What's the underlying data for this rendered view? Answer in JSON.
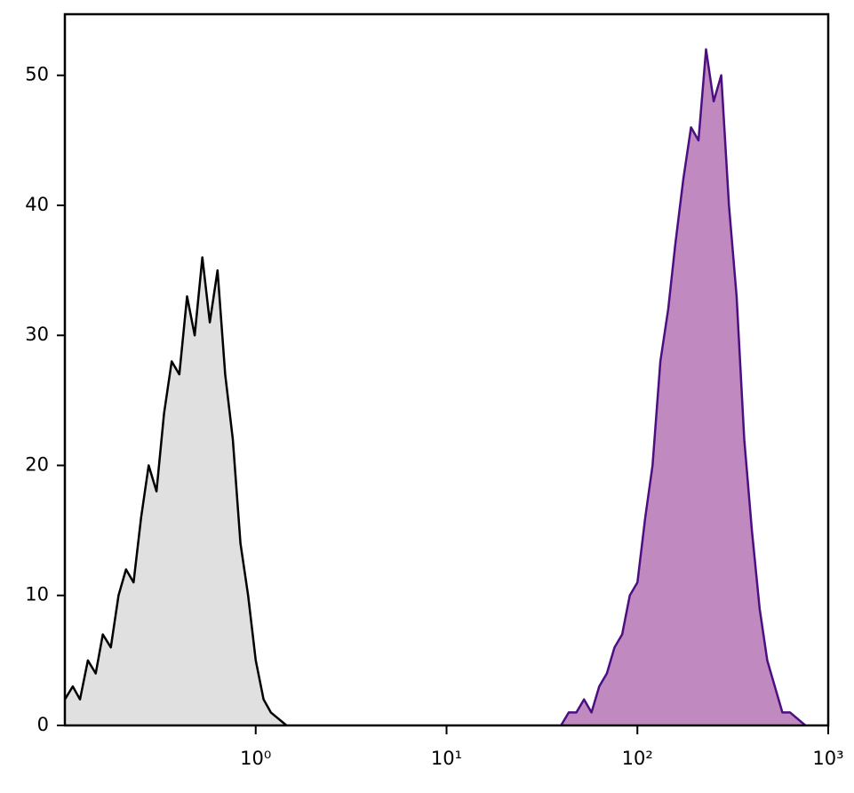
{
  "chart_data": {
    "type": "histogram-overlay",
    "xscale": "log",
    "xlim": [
      0.1,
      1000
    ],
    "ylim": [
      0,
      54.7
    ],
    "xticks": [
      {
        "value": 1,
        "label": "10⁰"
      },
      {
        "value": 10,
        "label": "10¹"
      },
      {
        "value": 100,
        "label": "10²"
      },
      {
        "value": 1000,
        "label": "10³"
      }
    ],
    "yticks": [
      0,
      10,
      20,
      30,
      40,
      50
    ],
    "series": [
      {
        "color": "#000000",
        "fill": "#e0e0e0",
        "x": [
          0.1,
          0.11,
          0.12,
          0.132,
          0.145,
          0.158,
          0.174,
          0.191,
          0.209,
          0.229,
          0.251,
          0.275,
          0.302,
          0.331,
          0.363,
          0.398,
          0.437,
          0.479,
          0.525,
          0.575,
          0.631,
          0.692,
          0.759,
          0.832,
          0.912,
          1.0,
          1.1,
          1.2,
          1.32,
          1.45
        ],
        "values": [
          2,
          3,
          2,
          5,
          4,
          7,
          6,
          10,
          12,
          11,
          16,
          20,
          18,
          24,
          28,
          27,
          33,
          30,
          36,
          31,
          35,
          27,
          22,
          14,
          10,
          5,
          2,
          1,
          0.5,
          0
        ]
      },
      {
        "color": "#4b0f82",
        "fill": "#c08ac0",
        "x": [
          39.8,
          43.7,
          47.9,
          52.5,
          57.5,
          63.1,
          69.2,
          75.9,
          83.2,
          91.2,
          100,
          110,
          120,
          132,
          145,
          158,
          174,
          191,
          209,
          229,
          251,
          275,
          302,
          331,
          363,
          398,
          437,
          479,
          525,
          575,
          631,
          692,
          759
        ],
        "values": [
          0,
          1,
          1,
          2,
          1,
          3,
          4,
          6,
          7,
          10,
          11,
          16,
          20,
          28,
          32,
          37,
          42,
          46,
          45,
          52,
          48,
          50,
          40,
          33,
          22,
          15,
          9,
          5,
          3,
          1,
          1,
          0.5,
          0
        ]
      }
    ]
  }
}
